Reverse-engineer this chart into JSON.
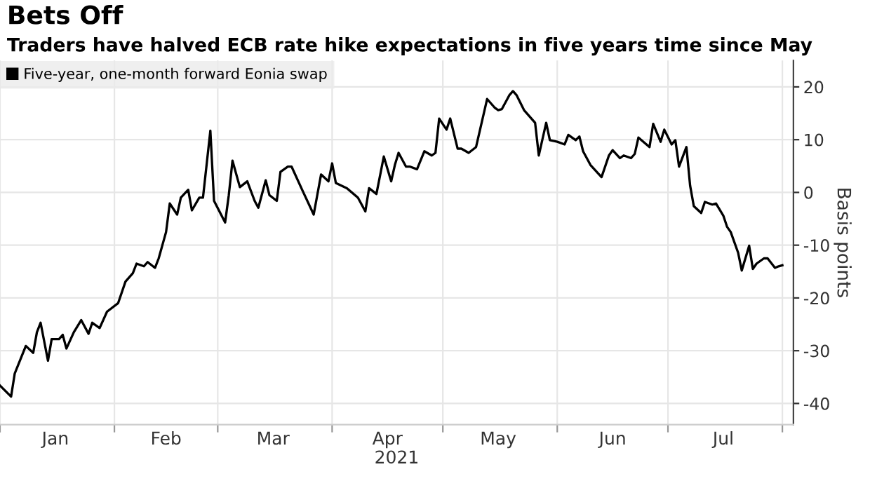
{
  "chart_data": {
    "type": "line",
    "title": "Bets Off",
    "subtitle": "Traders have halved ECB rate hike expectations in five years time since May",
    "xlabel": "2021",
    "ylabel": "Basis points",
    "series": [
      {
        "name": "Five-year, one-month forward Eonia swap",
        "color": "#000000",
        "x": [
          "2021-01-01",
          "2021-01-04",
          "2021-01-05",
          "2021-01-08",
          "2021-01-10",
          "2021-01-11",
          "2021-01-12",
          "2021-01-14",
          "2021-01-15",
          "2021-01-17",
          "2021-01-18",
          "2021-01-19",
          "2021-01-21",
          "2021-01-23",
          "2021-01-25",
          "2021-01-26",
          "2021-01-28",
          "2021-01-30",
          "2021-02-02",
          "2021-02-04",
          "2021-02-06",
          "2021-02-07",
          "2021-02-09",
          "2021-02-10",
          "2021-02-12",
          "2021-02-13",
          "2021-02-15",
          "2021-02-16",
          "2021-02-18",
          "2021-02-19",
          "2021-02-21",
          "2021-02-22",
          "2021-02-24",
          "2021-02-25",
          "2021-02-27",
          "2021-02-28",
          "2021-03-03",
          "2021-03-04",
          "2021-03-05",
          "2021-03-07",
          "2021-03-09",
          "2021-03-11",
          "2021-03-12",
          "2021-03-14",
          "2021-03-15",
          "2021-03-17",
          "2021-03-18",
          "2021-03-20",
          "2021-03-21",
          "2021-03-24",
          "2021-03-27",
          "2021-03-29",
          "2021-03-31",
          "2021-04-01",
          "2021-04-02",
          "2021-04-05",
          "2021-04-08",
          "2021-04-10",
          "2021-04-11",
          "2021-04-13",
          "2021-04-15",
          "2021-04-17",
          "2021-04-18",
          "2021-04-19",
          "2021-04-21",
          "2021-04-22",
          "2021-04-24",
          "2021-04-26",
          "2021-04-28",
          "2021-04-29",
          "2021-04-30",
          "2021-05-02",
          "2021-05-03",
          "2021-05-05",
          "2021-05-06",
          "2021-05-08",
          "2021-05-10",
          "2021-05-13",
          "2021-05-15",
          "2021-05-16",
          "2021-05-17",
          "2021-05-19",
          "2021-05-20",
          "2021-05-21",
          "2021-05-23",
          "2021-05-26",
          "2021-05-27",
          "2021-05-29",
          "2021-05-30",
          "2021-06-01",
          "2021-06-03",
          "2021-06-04",
          "2021-06-06",
          "2021-06-07",
          "2021-06-08",
          "2021-06-10",
          "2021-06-13",
          "2021-06-15",
          "2021-06-16",
          "2021-06-18",
          "2021-06-19",
          "2021-06-21",
          "2021-06-22",
          "2021-06-23",
          "2021-06-26",
          "2021-06-27",
          "2021-06-29",
          "2021-06-30",
          "2021-07-02",
          "2021-07-03",
          "2021-07-04",
          "2021-07-06",
          "2021-07-07",
          "2021-07-08",
          "2021-07-10",
          "2021-07-11",
          "2021-07-13",
          "2021-07-14",
          "2021-07-16",
          "2021-07-17",
          "2021-07-18",
          "2021-07-20",
          "2021-07-21",
          "2021-07-23",
          "2021-07-24",
          "2021-07-25",
          "2021-07-27",
          "2021-07-28",
          "2021-07-30",
          "2021-07-31",
          "2021-08-01"
        ],
        "values": [
          -36.6,
          -38.7,
          -34.3,
          -29.1,
          -30.4,
          -26.5,
          -24.7,
          -31.9,
          -27.8,
          -27.8,
          -27,
          -29.6,
          -26.5,
          -24.2,
          -26.8,
          -24.7,
          -25.7,
          -22.6,
          -21,
          -16.9,
          -15.3,
          -13.5,
          -14,
          -13.2,
          -14.3,
          -12.5,
          -7.5,
          -2.1,
          -4.2,
          -1,
          0.5,
          -3.4,
          -1,
          -1,
          11.7,
          -1.6,
          -5.7,
          -0.5,
          6,
          1,
          2.1,
          -1.6,
          -2.9,
          2.3,
          -0.5,
          -1.6,
          3.9,
          4.9,
          4.9,
          0.3,
          -4.2,
          3.4,
          2.1,
          5.5,
          1.8,
          0.8,
          -1,
          -3.6,
          0.8,
          -0.3,
          6.8,
          2.1,
          5.2,
          7.5,
          4.9,
          4.9,
          4.4,
          7.8,
          7,
          7.5,
          14,
          11.9,
          14,
          8.3,
          8.3,
          7.5,
          8.6,
          17.7,
          16.1,
          15.6,
          15.8,
          18.4,
          19.2,
          18.4,
          15.6,
          13.2,
          7,
          13.2,
          9.9,
          9.6,
          9.1,
          10.9,
          9.9,
          10.6,
          7.8,
          5.2,
          2.9,
          7,
          8,
          6.5,
          7,
          6.5,
          7.3,
          10.4,
          8.6,
          13,
          9.6,
          11.9,
          9.1,
          9.9,
          4.9,
          8.6,
          1.3,
          -2.6,
          -3.9,
          -1.8,
          -2.3,
          -2.1,
          -4.4,
          -6.5,
          -7.5,
          -11.4,
          -14.8,
          -10.1,
          -14.5,
          -13.5,
          -12.5,
          -12.5,
          -14.3,
          -14,
          -13.8
        ]
      }
    ],
    "xlim": [
      "2021-01-01",
      "2021-08-04"
    ],
    "xticks": [
      {
        "value": "2021-01-01",
        "label": null
      },
      {
        "value": "2021-01-16",
        "label": "Jan"
      },
      {
        "value": "2021-02-01",
        "label": null
      },
      {
        "value": "2021-02-15",
        "label": "Feb"
      },
      {
        "value": "2021-03-01",
        "label": null
      },
      {
        "value": "2021-03-16",
        "label": "Mar"
      },
      {
        "value": "2021-04-01",
        "label": null
      },
      {
        "value": "2021-04-16",
        "label": "Apr"
      },
      {
        "value": "2021-05-01",
        "label": null
      },
      {
        "value": "2021-05-16",
        "label": "May"
      },
      {
        "value": "2021-06-01",
        "label": null
      },
      {
        "value": "2021-06-16",
        "label": "Jun"
      },
      {
        "value": "2021-07-01",
        "label": null
      },
      {
        "value": "2021-07-16",
        "label": "Jul"
      },
      {
        "value": "2021-08-01",
        "label": null
      }
    ],
    "ylim": [
      -44,
      25
    ],
    "yticks": [
      -40,
      -30,
      -20,
      -10,
      0,
      10,
      20
    ],
    "grid": true,
    "legend": "top left",
    "marker": "none",
    "line_style": "solid"
  }
}
